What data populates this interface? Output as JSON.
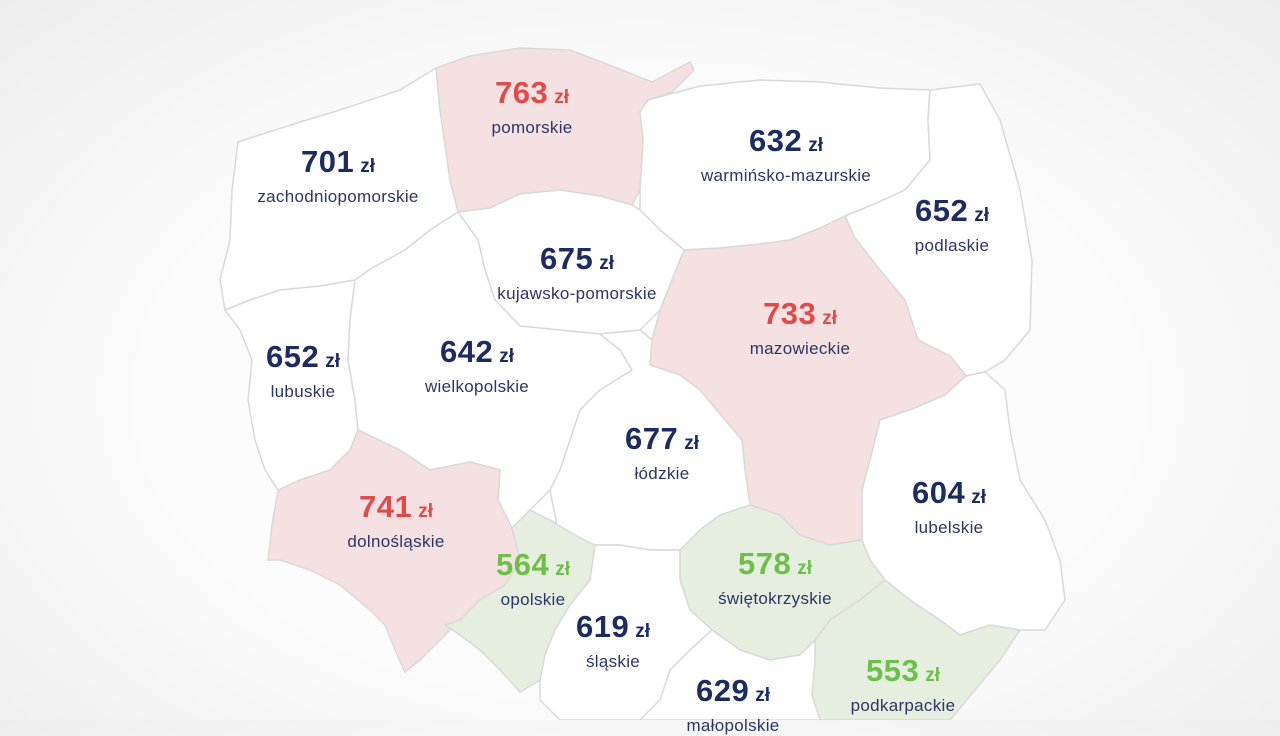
{
  "colors": {
    "high": "#e24a4a",
    "low": "#6cc04a",
    "normal": "#1e2b63",
    "fill_high": "#f5e1e1",
    "fill_low": "#e6eedf",
    "fill_normal": "#ffffff"
  },
  "regions": [
    {
      "id": "pomorskie",
      "value": "763",
      "currency": "zł",
      "name": "pomorskie",
      "status": "high"
    },
    {
      "id": "zachodniopomorskie",
      "value": "701",
      "currency": "zł",
      "name": "zachodniopomorskie",
      "status": "normal"
    },
    {
      "id": "warminsko",
      "value": "632",
      "currency": "zł",
      "name": "warmińsko-mazurskie",
      "status": "normal"
    },
    {
      "id": "podlaskie",
      "value": "652",
      "currency": "zł",
      "name": "podlaskie",
      "status": "normal"
    },
    {
      "id": "kujawsko",
      "value": "675",
      "currency": "zł",
      "name": "kujawsko-pomorskie",
      "status": "normal"
    },
    {
      "id": "mazowieckie",
      "value": "733",
      "currency": "zł",
      "name": "mazowieckie",
      "status": "high"
    },
    {
      "id": "lubuskie",
      "value": "652",
      "currency": "zł",
      "name": "lubuskie",
      "status": "normal"
    },
    {
      "id": "wielkopolskie",
      "value": "642",
      "currency": "zł",
      "name": "wielkopolskie",
      "status": "normal"
    },
    {
      "id": "lodzkie",
      "value": "677",
      "currency": "zł",
      "name": "łódzkie",
      "status": "normal"
    },
    {
      "id": "lubelskie",
      "value": "604",
      "currency": "zł",
      "name": "lubelskie",
      "status": "normal"
    },
    {
      "id": "dolnoslaskie",
      "value": "741",
      "currency": "zł",
      "name": "dolnośląskie",
      "status": "high"
    },
    {
      "id": "opolskie",
      "value": "564",
      "currency": "zł",
      "name": "opolskie",
      "status": "low"
    },
    {
      "id": "swietokrzyskie",
      "value": "578",
      "currency": "zł",
      "name": "świętokrzyskie",
      "status": "low"
    },
    {
      "id": "slaskie",
      "value": "619",
      "currency": "zł",
      "name": "śląskie",
      "status": "normal"
    },
    {
      "id": "podkarpackie",
      "value": "553",
      "currency": "zł",
      "name": "podkarpackie",
      "status": "low"
    },
    {
      "id": "malopolskie",
      "value": "629",
      "currency": "zł",
      "name": "małopolskie",
      "status": "normal"
    }
  ]
}
